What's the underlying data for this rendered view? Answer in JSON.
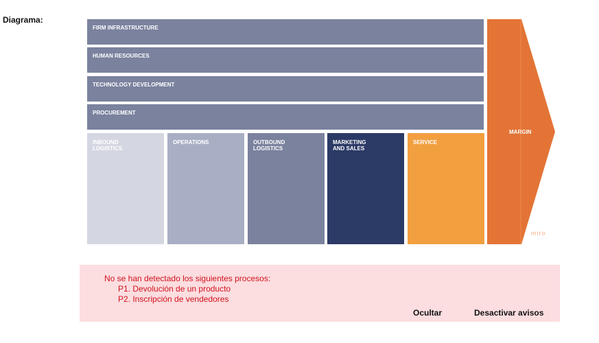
{
  "page": {
    "label": "Diagrama:"
  },
  "diagram": {
    "support_activities": [
      "FIRM INFRASTRUCTURE",
      "HUMAN RESOURCES",
      "TECHNOLOGY DEVELOPMENT",
      "PROCUREMENT"
    ],
    "primary_activities": [
      {
        "label": "INBOUND\nLOGISTICS",
        "color": "#d4d7e1"
      },
      {
        "label": "OPERATIONS",
        "color": "#a8afc4"
      },
      {
        "label": "OUTBOUND\nLOGISTICS",
        "color": "#7a829e"
      },
      {
        "label": "MARKETING\nAND SALES",
        "color": "#2c3a66"
      },
      {
        "label": "SERVICE",
        "color": "#f29f40"
      }
    ],
    "margin_label": "MARGIN",
    "watermark": "miro",
    "colors": {
      "support_bar": "#7a829e",
      "margin": "#e37436"
    }
  },
  "alert": {
    "title": "No se han detectado los siguientes procesos:",
    "items": [
      "P1. Devolución de un producto",
      "P2. Inscripción de vendedores"
    ],
    "hide_label": "Ocultar",
    "disable_label": "Desactivar avisos",
    "colors": {
      "background": "#fcdde0",
      "text": "#d0121b"
    }
  }
}
